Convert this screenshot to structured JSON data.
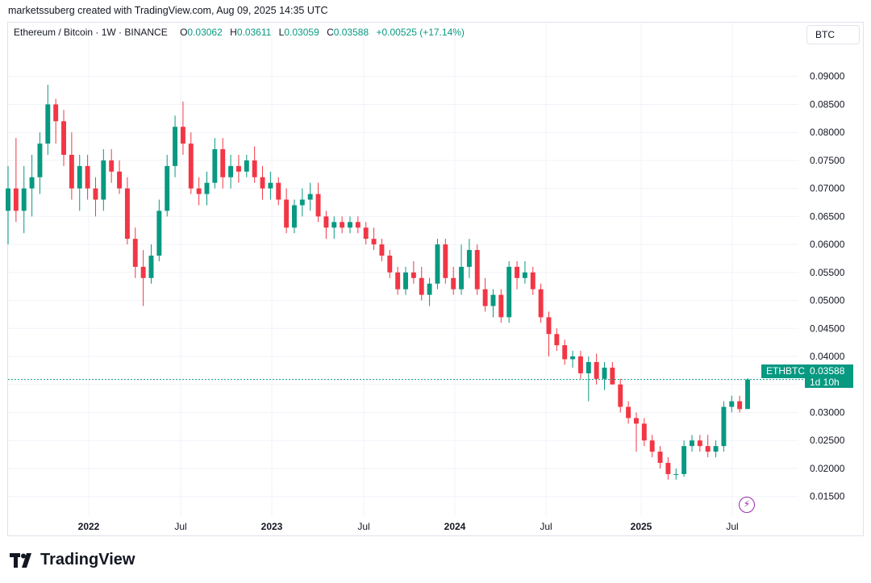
{
  "caption": "marketssuberg created with TradingView.com, Aug 09, 2025 14:35 UTC",
  "header": {
    "symbol": "Ethereum / Bitcoin · 1W · BINANCE",
    "open_label": "O",
    "open": "0.03062",
    "high_label": "H",
    "high": "0.03611",
    "low_label": "L",
    "low": "0.03059",
    "close_label": "C",
    "close": "0.03588",
    "change": "+0.00525 (+17.14%)"
  },
  "currency_button": "BTC",
  "price_tag": {
    "ticker": "ETHBTC",
    "price": "0.03588",
    "countdown": "1d 10h"
  },
  "brand": "TradingView",
  "colors": {
    "up": "#089981",
    "down": "#f23645",
    "grid": "#f0f3fa",
    "accent_purple": "#9c27b0"
  },
  "icons": {
    "logo": "tradingview-logo-icon",
    "lightning": "lightning-icon"
  },
  "chart_data": {
    "type": "candlestick",
    "timeframe": "1W",
    "y_ticks": [
      "0.09000",
      "0.08500",
      "0.08000",
      "0.07500",
      "0.07000",
      "0.06500",
      "0.06000",
      "0.05500",
      "0.05000",
      "0.04500",
      "0.04000",
      "0.03500",
      "0.03000",
      "0.02500",
      "0.02000",
      "0.01500"
    ],
    "x_ticks": [
      "2022",
      "Jul",
      "2023",
      "Jul",
      "2024",
      "Jul",
      "2025",
      "Jul"
    ],
    "ylim": [
      0.0115,
      0.095
    ],
    "grid": true,
    "last_price": 0.03588,
    "series": [
      {
        "t": "2021-09",
        "o": 0.066,
        "h": 0.074,
        "l": 0.06,
        "c": 0.07
      },
      {
        "t": "2021-10",
        "o": 0.07,
        "h": 0.079,
        "l": 0.064,
        "c": 0.066
      },
      {
        "t": "2021-10b",
        "o": 0.066,
        "h": 0.074,
        "l": 0.062,
        "c": 0.07
      },
      {
        "t": "2021-11",
        "o": 0.07,
        "h": 0.076,
        "l": 0.065,
        "c": 0.072
      },
      {
        "t": "2021-11b",
        "o": 0.072,
        "h": 0.08,
        "l": 0.069,
        "c": 0.078
      },
      {
        "t": "2021-12",
        "o": 0.078,
        "h": 0.0885,
        "l": 0.076,
        "c": 0.085
      },
      {
        "t": "2021-12b",
        "o": 0.085,
        "h": 0.086,
        "l": 0.078,
        "c": 0.082
      },
      {
        "t": "2022-01",
        "o": 0.082,
        "h": 0.084,
        "l": 0.074,
        "c": 0.076
      },
      {
        "t": "2022-01b",
        "o": 0.076,
        "h": 0.08,
        "l": 0.068,
        "c": 0.07
      },
      {
        "t": "2022-02",
        "o": 0.07,
        "h": 0.076,
        "l": 0.066,
        "c": 0.074
      },
      {
        "t": "2022-02b",
        "o": 0.074,
        "h": 0.076,
        "l": 0.068,
        "c": 0.07
      },
      {
        "t": "2022-03",
        "o": 0.07,
        "h": 0.072,
        "l": 0.065,
        "c": 0.068
      },
      {
        "t": "2022-03b",
        "o": 0.068,
        "h": 0.077,
        "l": 0.066,
        "c": 0.075
      },
      {
        "t": "2022-04",
        "o": 0.075,
        "h": 0.077,
        "l": 0.071,
        "c": 0.073
      },
      {
        "t": "2022-04b",
        "o": 0.073,
        "h": 0.075,
        "l": 0.069,
        "c": 0.07
      },
      {
        "t": "2022-05",
        "o": 0.07,
        "h": 0.072,
        "l": 0.06,
        "c": 0.061
      },
      {
        "t": "2022-05b",
        "o": 0.061,
        "h": 0.063,
        "l": 0.054,
        "c": 0.056
      },
      {
        "t": "2022-06",
        "o": 0.056,
        "h": 0.059,
        "l": 0.049,
        "c": 0.054
      },
      {
        "t": "2022-06b",
        "o": 0.054,
        "h": 0.06,
        "l": 0.053,
        "c": 0.058
      },
      {
        "t": "2022-07",
        "o": 0.058,
        "h": 0.068,
        "l": 0.057,
        "c": 0.066
      },
      {
        "t": "2022-07b",
        "o": 0.066,
        "h": 0.076,
        "l": 0.065,
        "c": 0.074
      },
      {
        "t": "2022-08",
        "o": 0.074,
        "h": 0.083,
        "l": 0.072,
        "c": 0.081
      },
      {
        "t": "2022-08b",
        "o": 0.081,
        "h": 0.0855,
        "l": 0.076,
        "c": 0.078
      },
      {
        "t": "2022-09",
        "o": 0.078,
        "h": 0.08,
        "l": 0.069,
        "c": 0.07
      },
      {
        "t": "2022-09b",
        "o": 0.07,
        "h": 0.072,
        "l": 0.067,
        "c": 0.069
      },
      {
        "t": "2022-10",
        "o": 0.069,
        "h": 0.073,
        "l": 0.067,
        "c": 0.071
      },
      {
        "t": "2022-10b",
        "o": 0.071,
        "h": 0.079,
        "l": 0.07,
        "c": 0.077
      },
      {
        "t": "2022-11",
        "o": 0.077,
        "h": 0.079,
        "l": 0.07,
        "c": 0.072
      },
      {
        "t": "2022-11b",
        "o": 0.072,
        "h": 0.076,
        "l": 0.07,
        "c": 0.074
      },
      {
        "t": "2022-12",
        "o": 0.074,
        "h": 0.076,
        "l": 0.071,
        "c": 0.073
      },
      {
        "t": "2022-12b",
        "o": 0.073,
        "h": 0.076,
        "l": 0.072,
        "c": 0.075
      },
      {
        "t": "2023-01",
        "o": 0.075,
        "h": 0.0775,
        "l": 0.071,
        "c": 0.072
      },
      {
        "t": "2023-01b",
        "o": 0.072,
        "h": 0.074,
        "l": 0.068,
        "c": 0.07
      },
      {
        "t": "2023-02",
        "o": 0.07,
        "h": 0.073,
        "l": 0.068,
        "c": 0.071
      },
      {
        "t": "2023-02b",
        "o": 0.071,
        "h": 0.072,
        "l": 0.067,
        "c": 0.068
      },
      {
        "t": "2023-03",
        "o": 0.068,
        "h": 0.07,
        "l": 0.062,
        "c": 0.063
      },
      {
        "t": "2023-03b",
        "o": 0.063,
        "h": 0.068,
        "l": 0.062,
        "c": 0.067
      },
      {
        "t": "2023-04",
        "o": 0.067,
        "h": 0.07,
        "l": 0.065,
        "c": 0.068
      },
      {
        "t": "2023-04b",
        "o": 0.068,
        "h": 0.071,
        "l": 0.066,
        "c": 0.069
      },
      {
        "t": "2023-05",
        "o": 0.069,
        "h": 0.071,
        "l": 0.064,
        "c": 0.065
      },
      {
        "t": "2023-05b",
        "o": 0.065,
        "h": 0.066,
        "l": 0.061,
        "c": 0.063
      },
      {
        "t": "2023-06",
        "o": 0.063,
        "h": 0.065,
        "l": 0.061,
        "c": 0.064
      },
      {
        "t": "2023-06b",
        "o": 0.064,
        "h": 0.065,
        "l": 0.062,
        "c": 0.063
      },
      {
        "t": "2023-07",
        "o": 0.063,
        "h": 0.065,
        "l": 0.062,
        "c": 0.064
      },
      {
        "t": "2023-07b",
        "o": 0.064,
        "h": 0.065,
        "l": 0.062,
        "c": 0.063
      },
      {
        "t": "2023-08",
        "o": 0.063,
        "h": 0.064,
        "l": 0.06,
        "c": 0.061
      },
      {
        "t": "2023-09",
        "o": 0.061,
        "h": 0.063,
        "l": 0.059,
        "c": 0.06
      },
      {
        "t": "2023-09b",
        "o": 0.06,
        "h": 0.061,
        "l": 0.057,
        "c": 0.058
      },
      {
        "t": "2023-10",
        "o": 0.058,
        "h": 0.059,
        "l": 0.054,
        "c": 0.055
      },
      {
        "t": "2023-10b",
        "o": 0.055,
        "h": 0.056,
        "l": 0.051,
        "c": 0.052
      },
      {
        "t": "2023-11",
        "o": 0.052,
        "h": 0.056,
        "l": 0.051,
        "c": 0.055
      },
      {
        "t": "2023-11b",
        "o": 0.055,
        "h": 0.057,
        "l": 0.053,
        "c": 0.054
      },
      {
        "t": "2023-12",
        "o": 0.054,
        "h": 0.056,
        "l": 0.05,
        "c": 0.051
      },
      {
        "t": "2023-12b",
        "o": 0.051,
        "h": 0.054,
        "l": 0.049,
        "c": 0.053
      },
      {
        "t": "2024-01",
        "o": 0.053,
        "h": 0.061,
        "l": 0.052,
        "c": 0.06
      },
      {
        "t": "2024-02",
        "o": 0.06,
        "h": 0.061,
        "l": 0.053,
        "c": 0.054
      },
      {
        "t": "2024-02b",
        "o": 0.054,
        "h": 0.056,
        "l": 0.051,
        "c": 0.052
      },
      {
        "t": "2024-03",
        "o": 0.052,
        "h": 0.06,
        "l": 0.051,
        "c": 0.056
      },
      {
        "t": "2024-03b",
        "o": 0.056,
        "h": 0.061,
        "l": 0.054,
        "c": 0.059
      },
      {
        "t": "2024-04",
        "o": 0.059,
        "h": 0.06,
        "l": 0.051,
        "c": 0.052
      },
      {
        "t": "2024-04b",
        "o": 0.052,
        "h": 0.054,
        "l": 0.048,
        "c": 0.049
      },
      {
        "t": "2024-05",
        "o": 0.049,
        "h": 0.052,
        "l": 0.047,
        "c": 0.051
      },
      {
        "t": "2024-05b",
        "o": 0.051,
        "h": 0.052,
        "l": 0.046,
        "c": 0.047
      },
      {
        "t": "2024-06",
        "o": 0.047,
        "h": 0.057,
        "l": 0.046,
        "c": 0.056
      },
      {
        "t": "2024-06b",
        "o": 0.056,
        "h": 0.057,
        "l": 0.052,
        "c": 0.054
      },
      {
        "t": "2024-07",
        "o": 0.054,
        "h": 0.057,
        "l": 0.053,
        "c": 0.055
      },
      {
        "t": "2024-07b",
        "o": 0.055,
        "h": 0.056,
        "l": 0.051,
        "c": 0.052
      },
      {
        "t": "2024-08",
        "o": 0.052,
        "h": 0.053,
        "l": 0.046,
        "c": 0.047
      },
      {
        "t": "2024-08b",
        "o": 0.047,
        "h": 0.048,
        "l": 0.04,
        "c": 0.044
      },
      {
        "t": "2024-09",
        "o": 0.044,
        "h": 0.045,
        "l": 0.041,
        "c": 0.042
      },
      {
        "t": "2024-09b",
        "o": 0.042,
        "h": 0.043,
        "l": 0.0385,
        "c": 0.0395
      },
      {
        "t": "2024-10",
        "o": 0.0395,
        "h": 0.041,
        "l": 0.038,
        "c": 0.04
      },
      {
        "t": "2024-10b",
        "o": 0.04,
        "h": 0.041,
        "l": 0.036,
        "c": 0.037
      },
      {
        "t": "2024-11",
        "o": 0.037,
        "h": 0.04,
        "l": 0.032,
        "c": 0.039
      },
      {
        "t": "2024-11b",
        "o": 0.039,
        "h": 0.0405,
        "l": 0.035,
        "c": 0.036
      },
      {
        "t": "2024-12",
        "o": 0.036,
        "h": 0.039,
        "l": 0.034,
        "c": 0.038
      },
      {
        "t": "2024-12b",
        "o": 0.038,
        "h": 0.039,
        "l": 0.035,
        "c": 0.035
      },
      {
        "t": "2025-01",
        "o": 0.035,
        "h": 0.036,
        "l": 0.03,
        "c": 0.031
      },
      {
        "t": "2025-01b",
        "o": 0.031,
        "h": 0.032,
        "l": 0.028,
        "c": 0.029
      },
      {
        "t": "2025-02",
        "o": 0.029,
        "h": 0.03,
        "l": 0.023,
        "c": 0.028
      },
      {
        "t": "2025-02b",
        "o": 0.028,
        "h": 0.029,
        "l": 0.024,
        "c": 0.025
      },
      {
        "t": "2025-03",
        "o": 0.025,
        "h": 0.026,
        "l": 0.022,
        "c": 0.023
      },
      {
        "t": "2025-03b",
        "o": 0.023,
        "h": 0.024,
        "l": 0.02,
        "c": 0.021
      },
      {
        "t": "2025-04",
        "o": 0.021,
        "h": 0.022,
        "l": 0.018,
        "c": 0.019
      },
      {
        "t": "2025-04b",
        "o": 0.019,
        "h": 0.02,
        "l": 0.018,
        "c": 0.019
      },
      {
        "t": "2025-05",
        "o": 0.019,
        "h": 0.025,
        "l": 0.0185,
        "c": 0.024
      },
      {
        "t": "2025-05b",
        "o": 0.024,
        "h": 0.026,
        "l": 0.023,
        "c": 0.025
      },
      {
        "t": "2025-06",
        "o": 0.025,
        "h": 0.026,
        "l": 0.023,
        "c": 0.024
      },
      {
        "t": "2025-06b",
        "o": 0.024,
        "h": 0.026,
        "l": 0.022,
        "c": 0.023
      },
      {
        "t": "2025-07",
        "o": 0.023,
        "h": 0.025,
        "l": 0.022,
        "c": 0.024
      },
      {
        "t": "2025-07b",
        "o": 0.024,
        "h": 0.032,
        "l": 0.023,
        "c": 0.031
      },
      {
        "t": "2025-07c",
        "o": 0.031,
        "h": 0.033,
        "l": 0.03,
        "c": 0.032
      },
      {
        "t": "2025-08",
        "o": 0.032,
        "h": 0.033,
        "l": 0.03,
        "c": 0.0306
      },
      {
        "t": "2025-08b",
        "o": 0.03062,
        "h": 0.03611,
        "l": 0.03059,
        "c": 0.03588
      }
    ]
  }
}
